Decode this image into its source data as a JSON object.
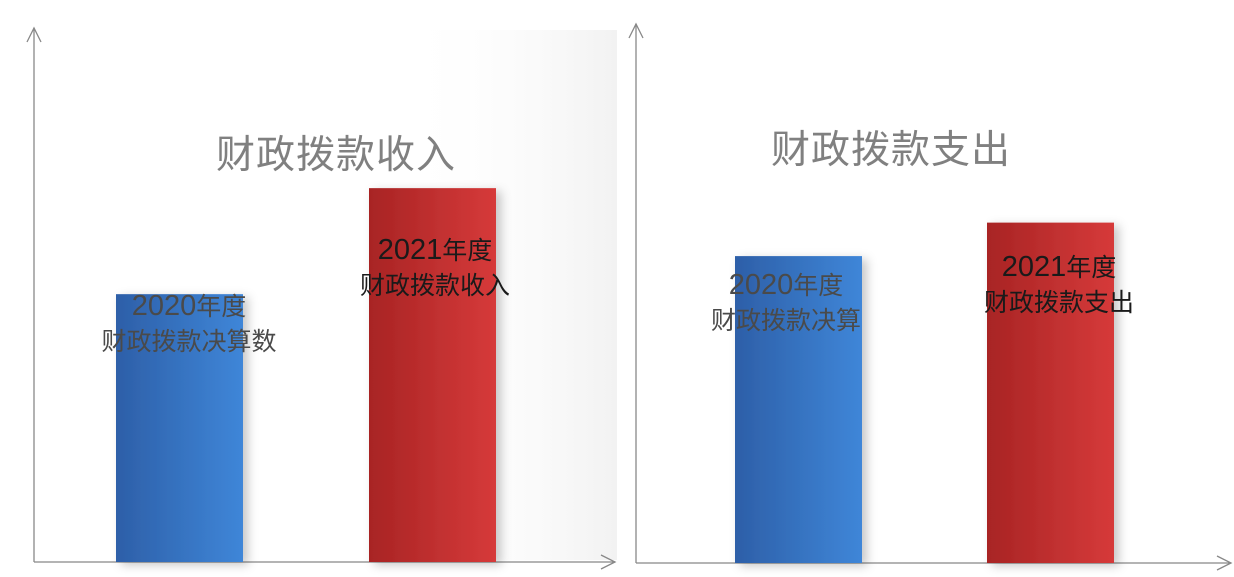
{
  "colors": {
    "blue_series": "#3a7ccf",
    "red_series": "#cf3434",
    "axis": "#888888",
    "title_gray": "#808080"
  },
  "chart_data": [
    {
      "type": "bar",
      "title": "财政拨款收入",
      "categories": [
        "2020年度 财政拨款决算数",
        "2021年度 财政拨款收入"
      ],
      "values": [
        0.48,
        0.67
      ],
      "value_unit": "relative bar height (no axis values printed)",
      "labels": [
        {
          "year_num": "2020",
          "year_suffix": "年度",
          "desc": "财政拨款决算数"
        },
        {
          "year_num": "2021",
          "year_suffix": "年度",
          "desc": "财政拨款收入"
        }
      ],
      "ylim": [
        0,
        1
      ]
    },
    {
      "type": "bar",
      "title": "财政拨款支出",
      "categories": [
        "2020年度 财政拨款决算",
        "2021年度 财政拨款支出"
      ],
      "values": [
        0.55,
        0.61
      ],
      "value_unit": "relative bar height (no axis values printed)",
      "labels": [
        {
          "year_num": "2020",
          "year_suffix": "年度",
          "desc": "财政拨款决算"
        },
        {
          "year_num": "2021",
          "year_suffix": "年度",
          "desc": "财政拨款支出"
        }
      ],
      "ylim": [
        0,
        1
      ]
    }
  ]
}
